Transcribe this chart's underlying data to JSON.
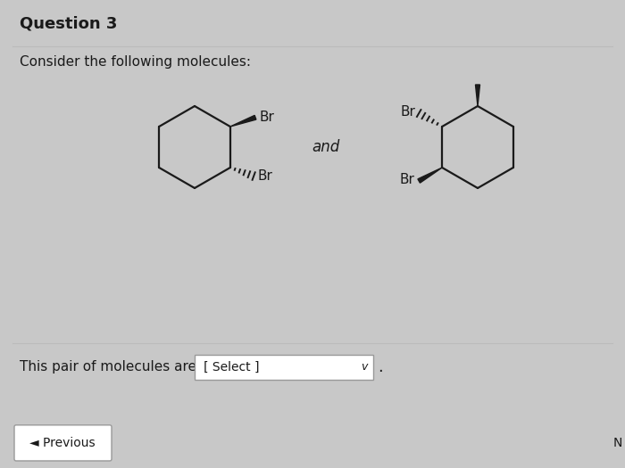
{
  "title": "Question 3",
  "subtitle": "Consider the following molecules:",
  "and_text": "and",
  "bottom_text": "This pair of molecules are",
  "select_text": "[ Select ]",
  "previous_text": "◄ Previous",
  "bg_color": "#c8c8c8",
  "card_bg": "#efefef",
  "card_border": "#bbbbbb",
  "text_color": "#1a1a1a",
  "line_color": "#1a1a1a",
  "select_box_color": "#ffffff",
  "select_box_border": "#999999",
  "prev_btn_color": "#ffffff",
  "prev_btn_border": "#999999",
  "footer_bg": "#d0d0d0"
}
